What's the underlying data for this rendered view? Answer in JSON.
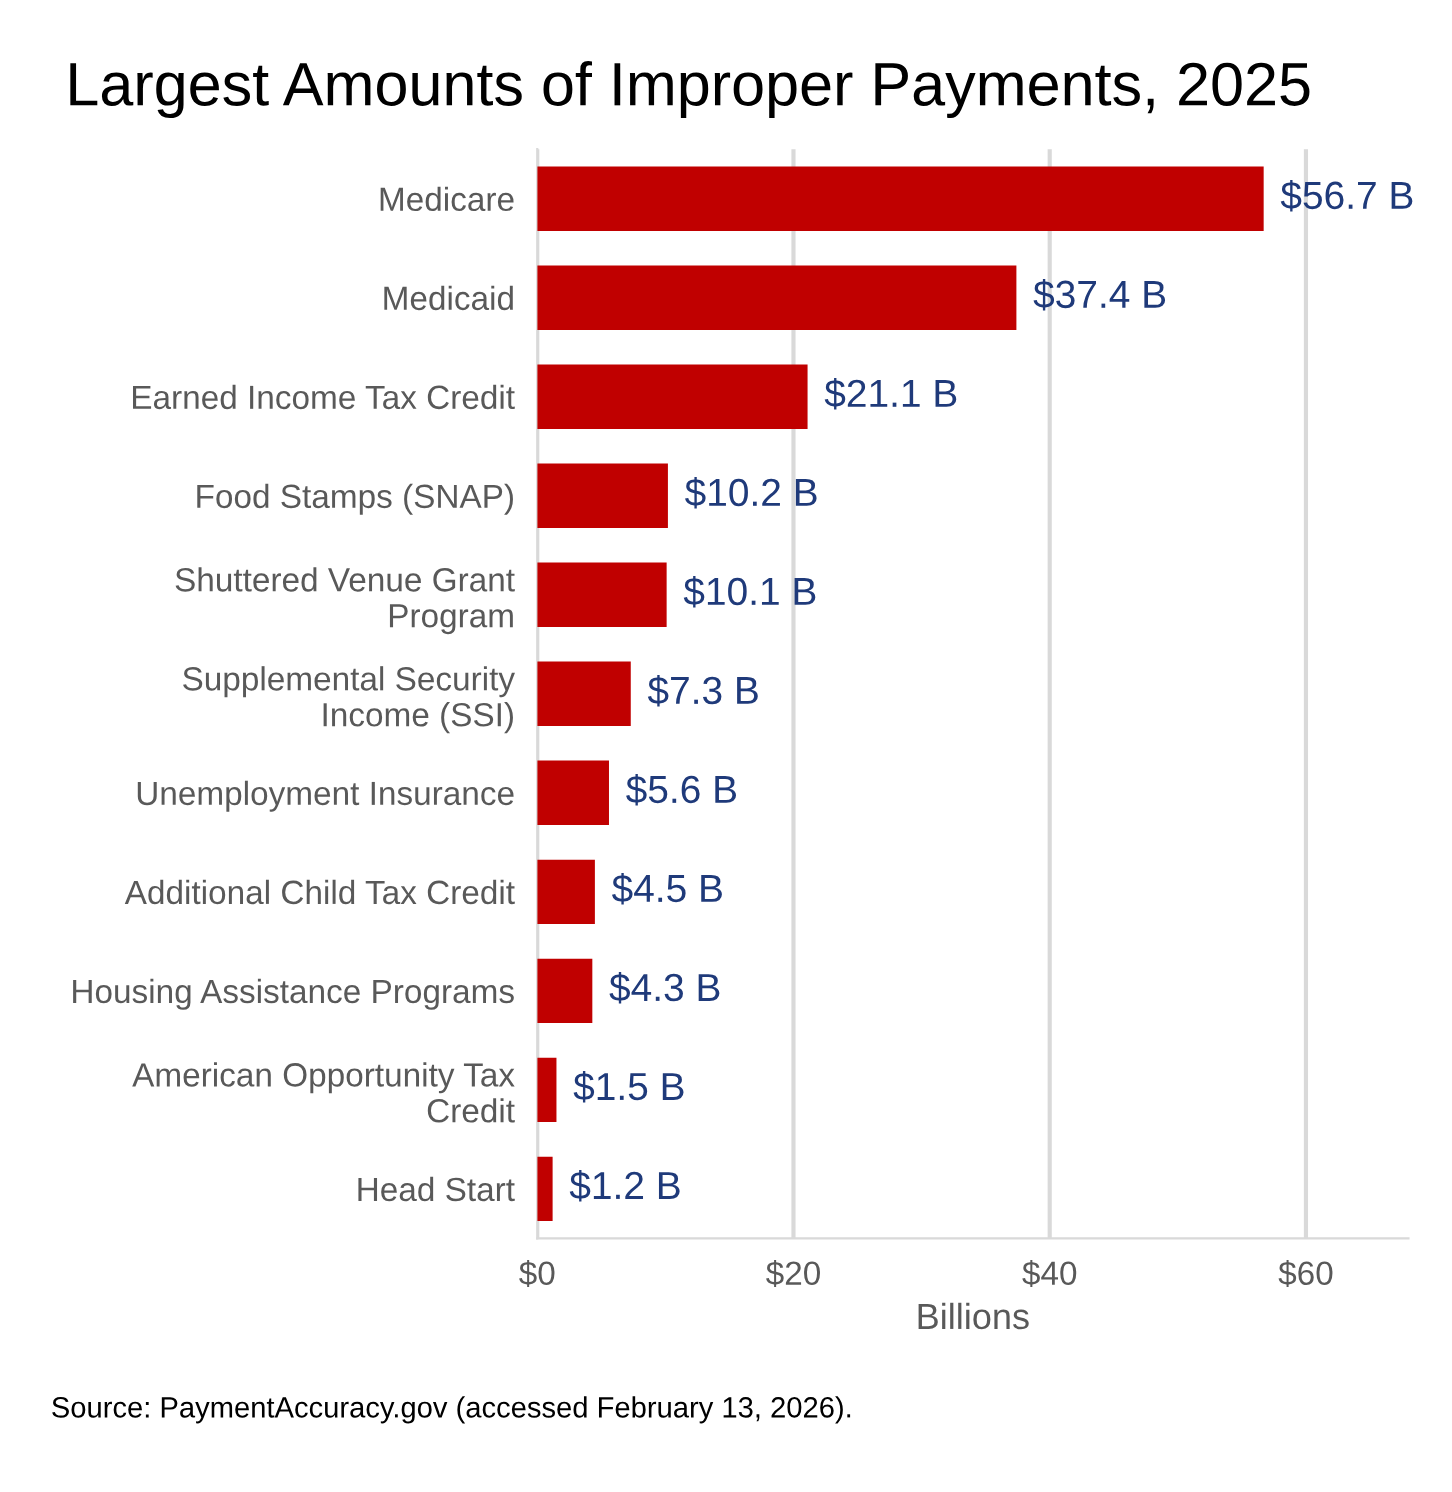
{
  "chart_data": {
    "type": "bar",
    "orientation": "horizontal",
    "title": "Largest Amounts of Improper Payments, 2025",
    "xlabel": "Billions",
    "categories": [
      "Medicare",
      "Medicaid",
      "Earned Income Tax Credit",
      "Food Stamps (SNAP)",
      "Shuttered Venue Grant\nProgram",
      "Supplemental Security\nIncome (SSI)",
      "Unemployment Insurance",
      "Additional Child Tax Credit",
      "Housing Assistance Programs",
      "American Opportunity Tax\nCredit",
      "Head Start"
    ],
    "values": [
      56.7,
      37.4,
      21.1,
      10.2,
      10.1,
      7.3,
      5.6,
      4.5,
      4.3,
      1.5,
      1.2
    ],
    "value_labels": [
      "$56.7 B",
      "$37.4 B",
      "$21.1 B",
      "$10.2 B",
      "$10.1 B",
      "$7.3 B",
      "$5.6 B",
      "$4.5 B",
      "$4.3 B",
      "$1.5 B",
      "$1.2 B"
    ],
    "color": "#c00000",
    "xlim": [
      0,
      68
    ],
    "xticks": [
      {
        "value": 0,
        "label": "$0"
      },
      {
        "value": 20,
        "label": "$20"
      },
      {
        "value": 40,
        "label": "$40"
      },
      {
        "value": 60,
        "label": "$60"
      }
    ],
    "grid": "x",
    "annotations": [
      "Source: PaymentAccuracy.gov (accessed February 13, 2026)."
    ]
  }
}
